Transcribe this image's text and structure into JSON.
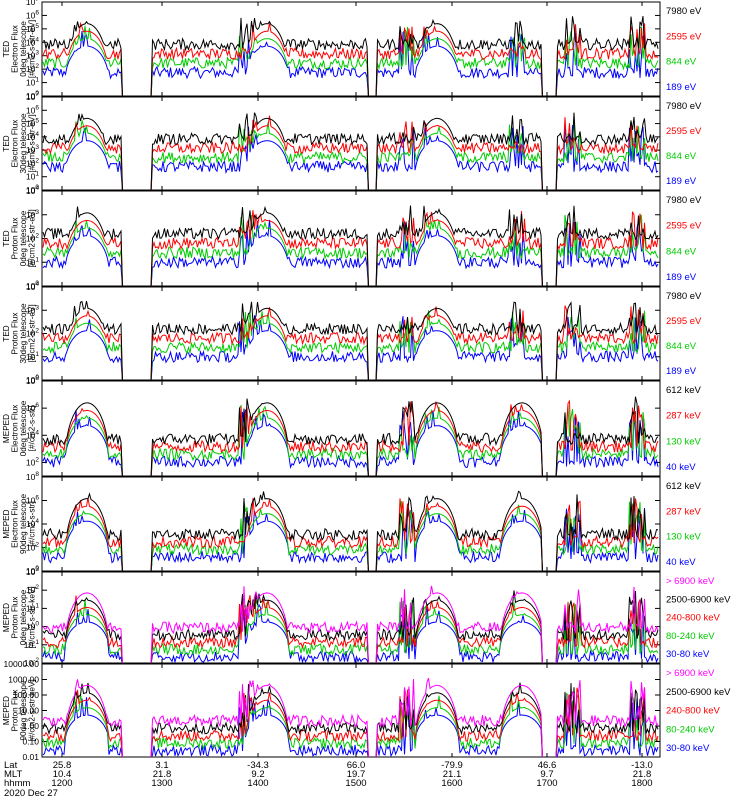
{
  "chart_data": {
    "type": "line",
    "date": "2020 Dec 27",
    "time_axis": {
      "row_labels": [
        "Lat",
        "MLT",
        "hhmm"
      ],
      "ticks": [
        {
          "lat": "25.8",
          "mlt": "10.4",
          "hhmm": "1200"
        },
        {
          "lat": "3.1",
          "mlt": "21.8",
          "hhmm": "1300"
        },
        {
          "lat": "-34.3",
          "mlt": "9.2",
          "hhmm": "1400"
        },
        {
          "lat": "66.0",
          "mlt": "19.7",
          "hhmm": "1500"
        },
        {
          "lat": "-79.9",
          "mlt": "21.1",
          "hhmm": "1600"
        },
        {
          "lat": "46.6",
          "mlt": "9.7",
          "hhmm": "1700"
        },
        {
          "lat": "-13.0",
          "mlt": "21.8",
          "hhmm": "1800"
        }
      ]
    },
    "panels": [
      {
        "id": "ted-e-0",
        "ylabel": [
          "TED",
          "Electron Flux",
          "0deg telescope",
          "[#/cm2-s-str-eV]"
        ],
        "ylim_exp": [
          0,
          7
        ],
        "ticks": [
          "10^0",
          "10^1",
          "10^2",
          "10^3",
          "10^4",
          "10^5",
          "10^6",
          "10^7"
        ],
        "series": [
          {
            "name": "7980 eV",
            "color": "#000000"
          },
          {
            "name": "2595 eV",
            "color": "#ff0000"
          },
          {
            "name": "844 eV",
            "color": "#00cc00"
          },
          {
            "name": "189 eV",
            "color": "#0000ff"
          }
        ]
      },
      {
        "id": "ted-e-30",
        "ylabel": [
          "TED",
          "Electron Flux",
          "30deg telescope",
          "[#/cm2-s-str-eV]"
        ],
        "ylim_exp": [
          0,
          7
        ],
        "ticks": [
          "10^0",
          "10^1",
          "10^2",
          "10^3",
          "10^4",
          "10^5",
          "10^6",
          "10^7"
        ],
        "series": [
          {
            "name": "7980 eV",
            "color": "#000000"
          },
          {
            "name": "2595 eV",
            "color": "#ff0000"
          },
          {
            "name": "844 eV",
            "color": "#00cc00"
          },
          {
            "name": "189 eV",
            "color": "#0000ff"
          }
        ]
      },
      {
        "id": "ted-p-0",
        "ylabel": [
          "TED",
          "Proton Flux",
          "0deg telescope",
          "[#/cm2-s-str-eV]"
        ],
        "ylim_exp": [
          0,
          5
        ],
        "ticks": [
          "10^0",
          "10^1",
          "10^2",
          "10^3",
          "10^4"
        ],
        "series": [
          {
            "name": "7980 eV",
            "color": "#000000"
          },
          {
            "name": "2595 eV",
            "color": "#ff0000"
          },
          {
            "name": "844 eV",
            "color": "#00cc00"
          },
          {
            "name": "189 eV",
            "color": "#0000ff"
          }
        ]
      },
      {
        "id": "ted-p-30",
        "ylabel": [
          "TED",
          "Proton Flux",
          "30deg telescope",
          "[#/cm2-s-str-eV]"
        ],
        "ylim_exp": [
          0,
          5
        ],
        "ticks": [
          "10^0",
          "10^1",
          "10^2",
          "10^3",
          "10^4"
        ],
        "series": [
          {
            "name": "7980 eV",
            "color": "#000000"
          },
          {
            "name": "2595 eV",
            "color": "#ff0000"
          },
          {
            "name": "844 eV",
            "color": "#00cc00"
          },
          {
            "name": "189 eV",
            "color": "#0000ff"
          }
        ]
      },
      {
        "id": "meped-e-0",
        "ylabel": [
          "MEPED",
          "Electron Flux",
          "0deg telescope",
          "[#/cm2-s-str]"
        ],
        "ylim_exp": [
          1,
          8
        ],
        "ticks": [
          "10^2",
          "10^4",
          "10^6",
          "10^8"
        ],
        "series": [
          {
            "name": "612 keV",
            "color": "#000000"
          },
          {
            "name": "287 keV",
            "color": "#ff0000"
          },
          {
            "name": "130 keV",
            "color": "#00cc00"
          },
          {
            "name": "40 keV",
            "color": "#0000ff"
          }
        ]
      },
      {
        "id": "meped-e-90",
        "ylabel": [
          "MEPED",
          "Electron Flux",
          "90deg telescope",
          "[#/cm2-s-str]"
        ],
        "ylim_exp": [
          0,
          8
        ],
        "ticks": [
          "10^0",
          "10^2",
          "10^4",
          "10^6",
          "10^8"
        ],
        "series": [
          {
            "name": "612 keV",
            "color": "#000000"
          },
          {
            "name": "287 keV",
            "color": "#ff0000"
          },
          {
            "name": "130 keV",
            "color": "#00cc00"
          },
          {
            "name": "40 keV",
            "color": "#0000ff"
          }
        ]
      },
      {
        "id": "meped-p-0",
        "ylabel": [
          "MEPED",
          "Proton Flux",
          "0deg telescope",
          "[#/cm2-s-str-keV]"
        ],
        "ylim_exp": [
          -2,
          4
        ],
        "ticks": [
          "10^-2",
          "10^-1",
          "10^0",
          "10^1",
          "10^2",
          "10^3"
        ],
        "series": [
          {
            "name": "> 6900 keV",
            "color": "#ff00ff"
          },
          {
            "name": "2500-6900 keV",
            "color": "#000000"
          },
          {
            "name": "240-800 keV",
            "color": "#ff0000"
          },
          {
            "name": "80-240 keV",
            "color": "#00cc00"
          },
          {
            "name": "30-80 keV",
            "color": "#0000ff"
          }
        ]
      },
      {
        "id": "meped-p-90",
        "ylabel": [
          "MEPED",
          "Proton Flux",
          "90deg telescope",
          "[#/cm2-s-str-keV]"
        ],
        "ylim_exp": [
          -2,
          4
        ],
        "ticks": [
          "0.01",
          "0.10",
          "1.00",
          "10.00",
          "100.00",
          "1000.00",
          "10000.00"
        ],
        "series": [
          {
            "name": "> 6900 keV",
            "color": "#ff00ff"
          },
          {
            "name": "2500-6900 keV",
            "color": "#000000"
          },
          {
            "name": "240-800 keV",
            "color": "#ff0000"
          },
          {
            "name": "80-240 keV",
            "color": "#00cc00"
          },
          {
            "name": "30-80 keV",
            "color": "#0000ff"
          }
        ]
      }
    ]
  }
}
